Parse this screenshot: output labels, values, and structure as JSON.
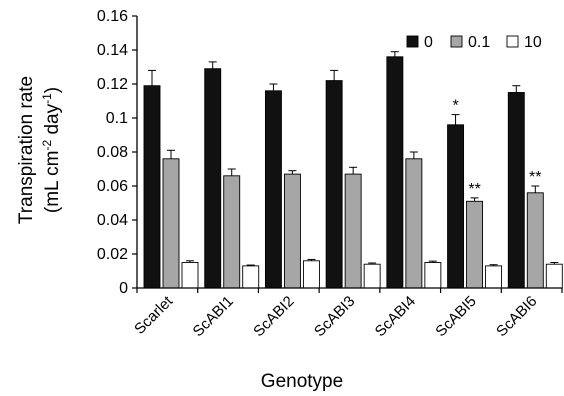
{
  "chart_data": {
    "type": "bar",
    "xlabel": "Genotype",
    "ylabel_line1": "Transpiration rate",
    "ylabel_unit_prefix": "(mL cm",
    "ylabel_sup1": "-2",
    "ylabel_mid": " day",
    "ylabel_sup2": "-1",
    "ylabel_suffix": ")",
    "ylim": [
      0,
      0.16
    ],
    "yticks": [
      "0",
      "0.02",
      "0.04",
      "0.06",
      "0.08",
      "0.1",
      "0.12",
      "0.14",
      "0.16"
    ],
    "ytick_values": [
      0,
      0.02,
      0.04,
      0.06,
      0.08,
      0.1,
      0.12,
      0.14,
      0.16
    ],
    "categories": [
      "Scarlet",
      "ScABI1",
      "ScABI2",
      "ScABI3",
      "ScABI4",
      "ScABI5",
      "ScABI6"
    ],
    "series": [
      {
        "name": "0",
        "color": "#111111",
        "values": [
          0.119,
          0.129,
          0.116,
          0.122,
          0.136,
          0.096,
          0.115
        ],
        "errors": [
          0.009,
          0.004,
          0.004,
          0.006,
          0.003,
          0.006,
          0.004
        ]
      },
      {
        "name": "0.1",
        "color": "#a6a6a6",
        "values": [
          0.076,
          0.066,
          0.067,
          0.067,
          0.076,
          0.051,
          0.056
        ],
        "errors": [
          0.005,
          0.004,
          0.002,
          0.004,
          0.004,
          0.002,
          0.004
        ]
      },
      {
        "name": "10",
        "color": "#ffffff",
        "values": [
          0.015,
          0.013,
          0.016,
          0.014,
          0.015,
          0.013,
          0.014
        ],
        "errors": [
          0.001,
          0.0005,
          0.0008,
          0.0007,
          0.0008,
          0.0007,
          0.001
        ]
      }
    ],
    "annotations": [
      {
        "category": "ScABI5",
        "series": "0",
        "text": "*"
      },
      {
        "category": "ScABI5",
        "series": "0.1",
        "text": "**"
      },
      {
        "category": "ScABI6",
        "series": "0.1",
        "text": "**"
      }
    ],
    "legend_position": "top-right",
    "grid": false
  }
}
